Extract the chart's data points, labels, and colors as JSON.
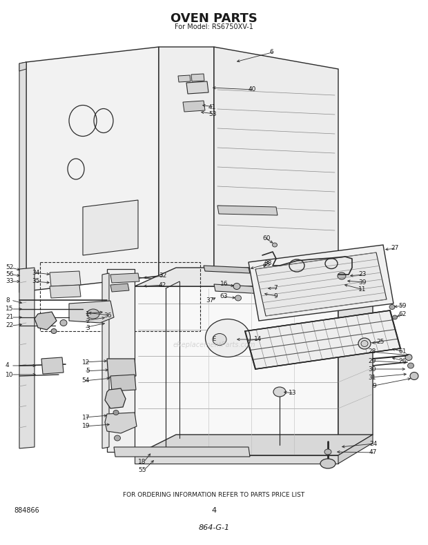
{
  "title": "OVEN PARTS",
  "subtitle": "For Model: RS6750XV-1",
  "footer_text": "FOR ORDERING INFORMATION REFER TO PARTS PRICE LIST",
  "page_number": "4",
  "doc_number": "864-G-1",
  "part_number_ref": "884866",
  "bg_color": "#ffffff",
  "line_color": "#2a2a2a",
  "text_color": "#1a1a1a",
  "watermark": "eReplacementParts.com"
}
